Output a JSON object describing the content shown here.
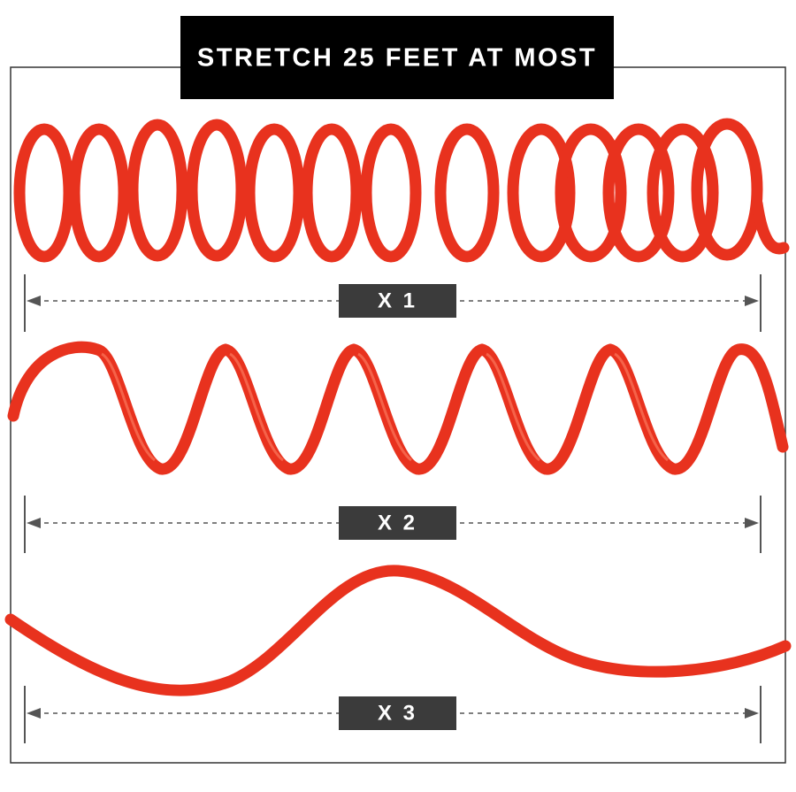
{
  "header": {
    "title": "STRETCH 25 FEET AT MOST"
  },
  "rows": [
    {
      "label": "X 1"
    },
    {
      "label": "X 2"
    },
    {
      "label": "X 3"
    }
  ]
}
